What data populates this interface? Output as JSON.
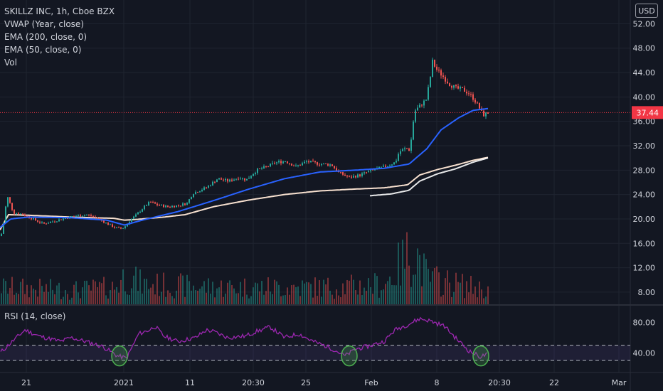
{
  "legend": {
    "symbol": "SKILLZ INC, 1h, Cboe BZX",
    "vwap": "VWAP (Year, close)",
    "ema200": "EMA (200, close, 0)",
    "ema50": "EMA (50, close, 0)",
    "vol": "Vol",
    "rsi": "RSI (14, close)"
  },
  "currency": "USD",
  "colors": {
    "background": "#131722",
    "grid": "#1f2430",
    "up": "#26a69a",
    "down": "#ef5350",
    "ema50": "#2962ff",
    "ema200": "#ffffff",
    "vwap": "#f7e0cf",
    "rsi": "#9c27b0",
    "rsi_band": "#7e57c2",
    "circle": "#4caf50",
    "last_price": "#f23645",
    "axis_text": "#d1d4dc"
  },
  "chart_data": [
    {
      "type": "candlestick",
      "title": "SKILLZ INC, 1h, Cboe BZX",
      "ylim": [
        4,
        56
      ],
      "y_ticks": [
        "52.00",
        "48.00",
        "44.00",
        "40.00",
        "36.00",
        "32.00",
        "28.00",
        "24.00",
        "20.00",
        "16.00",
        "12.00",
        "8.00"
      ],
      "x_ticks": [
        "21",
        "2021",
        "11",
        "20:30",
        "25",
        "Feb",
        "8",
        "20:30",
        "22",
        "Mar"
      ],
      "last_price": 37.44,
      "last_price_label": "37.44",
      "grid": true,
      "price_keyframes": [
        [
          0,
          17.2
        ],
        [
          3,
          18.3
        ],
        [
          6,
          21.5
        ],
        [
          10,
          23.5
        ],
        [
          18,
          21.0
        ],
        [
          30,
          20.8
        ],
        [
          45,
          20.0
        ],
        [
          60,
          19.2
        ],
        [
          80,
          19.8
        ],
        [
          100,
          20.4
        ],
        [
          120,
          20.7
        ],
        [
          135,
          20.2
        ],
        [
          150,
          19.2
        ],
        [
          160,
          18.6
        ],
        [
          170,
          18.4
        ],
        [
          175,
          18.8
        ],
        [
          182,
          19.8
        ],
        [
          190,
          20.6
        ],
        [
          200,
          21.8
        ],
        [
          210,
          22.8
        ],
        [
          220,
          22.3
        ],
        [
          235,
          22.0
        ],
        [
          250,
          22.2
        ],
        [
          262,
          22.6
        ],
        [
          270,
          24.2
        ],
        [
          290,
          25.2
        ],
        [
          305,
          26.6
        ],
        [
          320,
          26.2
        ],
        [
          335,
          26.8
        ],
        [
          345,
          26.4
        ],
        [
          360,
          28.0
        ],
        [
          375,
          28.6
        ],
        [
          385,
          29.2
        ],
        [
          400,
          29.5
        ],
        [
          415,
          28.6
        ],
        [
          430,
          29.4
        ],
        [
          450,
          29.0
        ],
        [
          465,
          28.9
        ],
        [
          475,
          27.6
        ],
        [
          490,
          26.8
        ],
        [
          505,
          27.2
        ],
        [
          520,
          27.9
        ],
        [
          535,
          28.4
        ],
        [
          545,
          28.8
        ],
        [
          555,
          29.3
        ],
        [
          560,
          31.0
        ],
        [
          570,
          31.6
        ],
        [
          576,
          31.2
        ],
        [
          578,
          34.8
        ],
        [
          583,
          37.8
        ],
        [
          590,
          38.6
        ],
        [
          598,
          39.6
        ],
        [
          603,
          42.5
        ],
        [
          607,
          45.8
        ],
        [
          612,
          44.6
        ],
        [
          620,
          43.6
        ],
        [
          630,
          42.2
        ],
        [
          640,
          41.4
        ],
        [
          650,
          41.2
        ],
        [
          658,
          40.6
        ],
        [
          665,
          39.7
        ],
        [
          672,
          38.4
        ],
        [
          678,
          37.0
        ],
        [
          686,
          37.44
        ]
      ],
      "ema50_keyframes": [
        [
          0,
          18.6
        ],
        [
          15,
          20.0
        ],
        [
          40,
          20.3
        ],
        [
          100,
          20.2
        ],
        [
          150,
          19.8
        ],
        [
          175,
          19.0
        ],
        [
          200,
          19.8
        ],
        [
          250,
          21.2
        ],
        [
          300,
          23.0
        ],
        [
          350,
          24.9
        ],
        [
          400,
          26.6
        ],
        [
          450,
          27.7
        ],
        [
          500,
          28.0
        ],
        [
          540,
          28.3
        ],
        [
          575,
          29.0
        ],
        [
          600,
          31.5
        ],
        [
          620,
          34.6
        ],
        [
          645,
          36.6
        ],
        [
          665,
          37.8
        ],
        [
          686,
          38.1
        ]
      ],
      "ema200_keyframes": [
        [
          520,
          23.8
        ],
        [
          550,
          24.1
        ],
        [
          575,
          24.7
        ],
        [
          590,
          26.2
        ],
        [
          615,
          27.4
        ],
        [
          640,
          28.2
        ],
        [
          665,
          29.3
        ],
        [
          686,
          30.0
        ]
      ],
      "vwap_keyframes": [
        [
          0,
          18.2
        ],
        [
          12,
          20.7
        ],
        [
          40,
          20.6
        ],
        [
          100,
          20.3
        ],
        [
          160,
          20.1
        ],
        [
          175,
          19.8
        ],
        [
          190,
          19.9
        ],
        [
          230,
          20.3
        ],
        [
          260,
          20.7
        ],
        [
          300,
          22.0
        ],
        [
          350,
          23.1
        ],
        [
          400,
          24.0
        ],
        [
          450,
          24.6
        ],
        [
          500,
          24.9
        ],
        [
          540,
          25.1
        ],
        [
          573,
          25.6
        ],
        [
          590,
          27.2
        ],
        [
          615,
          28.1
        ],
        [
          640,
          28.8
        ],
        [
          665,
          29.6
        ],
        [
          686,
          30.1
        ]
      ],
      "volume_keyframes": [
        [
          0,
          0.3
        ],
        [
          100,
          0.25
        ],
        [
          160,
          0.3
        ],
        [
          175,
          0.5
        ],
        [
          200,
          0.35
        ],
        [
          300,
          0.3
        ],
        [
          400,
          0.3
        ],
        [
          470,
          0.3
        ],
        [
          540,
          0.35
        ],
        [
          575,
          0.9
        ],
        [
          580,
          1.0
        ],
        [
          600,
          0.45
        ],
        [
          620,
          0.4
        ],
        [
          686,
          0.25
        ]
      ]
    },
    {
      "type": "line",
      "title": "RSI (14, close)",
      "ylim": [
        21.5,
        97
      ],
      "y_ticks": [
        "80.00",
        "40.00"
      ],
      "upper_band": 50,
      "lower_band": 30,
      "rsi_keyframes": [
        [
          0,
          40
        ],
        [
          35,
          70
        ],
        [
          55,
          62
        ],
        [
          85,
          55
        ],
        [
          100,
          60
        ],
        [
          120,
          55
        ],
        [
          145,
          48
        ],
        [
          165,
          36
        ],
        [
          178,
          33
        ],
        [
          195,
          65
        ],
        [
          210,
          70
        ],
        [
          218,
          75
        ],
        [
          230,
          62
        ],
        [
          250,
          55
        ],
        [
          275,
          60
        ],
        [
          290,
          70
        ],
        [
          300,
          68
        ],
        [
          320,
          60
        ],
        [
          345,
          62
        ],
        [
          360,
          68
        ],
        [
          380,
          74
        ],
        [
          400,
          60
        ],
        [
          420,
          65
        ],
        [
          440,
          55
        ],
        [
          455,
          50
        ],
        [
          470,
          44
        ],
        [
          485,
          36
        ],
        [
          500,
          45
        ],
        [
          515,
          48
        ],
        [
          540,
          55
        ],
        [
          555,
          70
        ],
        [
          575,
          78
        ],
        [
          590,
          85
        ],
        [
          605,
          82
        ],
        [
          625,
          75
        ],
        [
          640,
          60
        ],
        [
          660,
          42
        ],
        [
          675,
          35
        ],
        [
          686,
          38
        ]
      ],
      "circles_at_x": [
        168,
        491,
        676
      ]
    }
  ]
}
